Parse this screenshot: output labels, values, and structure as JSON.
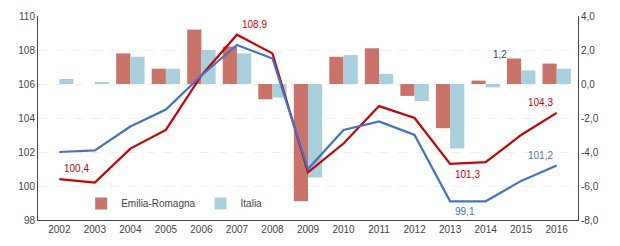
{
  "chart_data": {
    "type": "bar",
    "x": [
      2002,
      2003,
      2004,
      2005,
      2006,
      2007,
      2008,
      2009,
      2010,
      2011,
      2012,
      2013,
      2014,
      2015,
      2016
    ],
    "xlim": [
      2001.4,
      2016.6
    ],
    "xticks": [
      2002,
      2003,
      2004,
      2005,
      2006,
      2007,
      2008,
      2009,
      2010,
      2011,
      2012,
      2013,
      2014,
      2015,
      2016
    ],
    "ylim": [
      98,
      110
    ],
    "yticks": [
      98,
      100,
      102,
      104,
      106,
      108,
      110
    ],
    "y2lim": [
      -8,
      4
    ],
    "y2ticks": [
      {
        "value": -8,
        "label": "-8,0"
      },
      {
        "value": -6,
        "label": "-6,0"
      },
      {
        "value": -4,
        "label": "-4,0"
      },
      {
        "value": -2,
        "label": "-2,0"
      },
      {
        "value": 0,
        "label": "0,0"
      },
      {
        "value": 2,
        "label": "2,0"
      },
      {
        "value": 4,
        "label": "4,0"
      }
    ],
    "grid": true,
    "legend": "lower left",
    "series": [
      {
        "name": "Emilia-Romagna",
        "type": "bar",
        "axis": "y2",
        "color": "#c9736b",
        "values": [
          0.0,
          0.0,
          1.8,
          0.9,
          3.2,
          2.2,
          -0.9,
          -6.9,
          1.6,
          2.1,
          -0.7,
          -2.6,
          0.2,
          1.5,
          1.2
        ]
      },
      {
        "name": "Italia",
        "type": "bar",
        "axis": "y2",
        "color": "#aacfdc",
        "values": [
          0.3,
          0.1,
          1.6,
          0.9,
          2.0,
          1.8,
          -0.8,
          -5.5,
          1.7,
          0.6,
          -1.0,
          -3.8,
          -0.2,
          0.8,
          0.9
        ]
      },
      {
        "type": "line",
        "color": "#cc0000",
        "values": [
          100.4,
          100.2,
          102.2,
          103.3,
          106.5,
          108.9,
          107.8,
          100.8,
          102.5,
          104.7,
          104.0,
          101.3,
          101.4,
          103.0,
          104.3
        ]
      },
      {
        "type": "line",
        "color": "#4472c4",
        "values": [
          102.0,
          102.1,
          103.5,
          104.5,
          106.5,
          108.3,
          107.5,
          101.0,
          103.3,
          103.8,
          103.0,
          99.1,
          99.1,
          100.3,
          101.2
        ]
      }
    ],
    "annotations": [
      {
        "text": "100,4",
        "x": 2002,
        "y": 100.4,
        "color": "#cc0000"
      },
      {
        "text": "108,9",
        "x": 2007,
        "y": 108.9,
        "color": "#cc0000"
      },
      {
        "text": "101,3",
        "x": 2013,
        "y": 101.3,
        "color": "#cc0000"
      },
      {
        "text": "104,3",
        "x": 2016,
        "y": 104.3,
        "color": "#cc0000"
      },
      {
        "text": "99,1",
        "x": 2013,
        "y": 99.1,
        "color": "#4472c4"
      },
      {
        "text": "101,2",
        "x": 2016,
        "y": 101.2,
        "color": "#4472c4"
      },
      {
        "text": "1,2",
        "x": 2014.1,
        "y": 1.2,
        "color": "#444444",
        "axis": "y2"
      }
    ]
  }
}
